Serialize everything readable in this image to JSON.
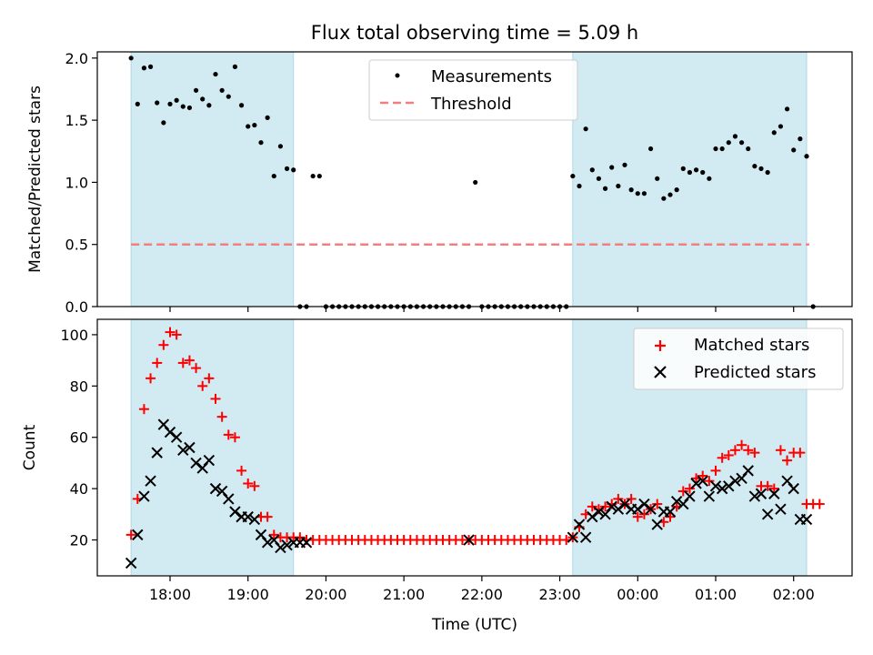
{
  "chart_data": [
    {
      "type": "scatter",
      "title": "Flux total observing time = 5.09 h",
      "ylabel": "Matched/Predicted stars",
      "xlabel": "",
      "ylim": [
        0,
        2.05
      ],
      "y_ticks": [
        0.0,
        0.5,
        1.0,
        1.5,
        2.0
      ],
      "y_tick_labels": [
        "0.0",
        "0.5",
        "1.0",
        "1.5",
        "2.0"
      ],
      "legend_placement": "top-center",
      "shaded_intervals": [
        [
          "17:30",
          "19:35"
        ],
        [
          "23:10",
          "02:10"
        ]
      ],
      "shade_color": "#add8e6",
      "threshold": {
        "name": "Threshold",
        "value": 0.5,
        "color": "#f08080",
        "x_range": [
          "17:30",
          "02:12"
        ]
      },
      "series": [
        {
          "name": "Measurements",
          "color": "#000000",
          "x": [
            "17:30",
            "17:35",
            "17:40",
            "17:45",
            "17:50",
            "17:55",
            "18:00",
            "18:05",
            "18:10",
            "18:15",
            "18:20",
            "18:25",
            "18:30",
            "18:35",
            "18:40",
            "18:45",
            "18:50",
            "18:55",
            "19:00",
            "19:05",
            "19:10",
            "19:15",
            "19:20",
            "19:25",
            "19:30",
            "19:35",
            "19:40",
            "19:45",
            "19:50",
            "19:55",
            "20:00",
            "20:05",
            "20:10",
            "20:15",
            "20:20",
            "20:25",
            "20:30",
            "20:35",
            "20:40",
            "20:45",
            "20:50",
            "20:55",
            "21:00",
            "21:05",
            "21:10",
            "21:15",
            "21:20",
            "21:25",
            "21:30",
            "21:35",
            "21:40",
            "21:45",
            "21:50",
            "21:55",
            "22:00",
            "22:05",
            "22:10",
            "22:15",
            "22:20",
            "22:25",
            "22:30",
            "22:35",
            "22:40",
            "22:45",
            "22:50",
            "22:55",
            "23:00",
            "23:05",
            "23:10",
            "23:15",
            "23:20",
            "23:25",
            "23:30",
            "23:35",
            "23:40",
            "23:45",
            "23:50",
            "23:55",
            "00:00",
            "00:05",
            "00:10",
            "00:15",
            "00:20",
            "00:25",
            "00:30",
            "00:35",
            "00:40",
            "00:45",
            "00:50",
            "00:55",
            "01:00",
            "01:05",
            "01:10",
            "01:15",
            "01:20",
            "01:25",
            "01:30",
            "01:35",
            "01:40",
            "01:45",
            "01:50",
            "01:55",
            "02:00",
            "02:05",
            "02:10",
            "02:15"
          ],
          "y": [
            2.0,
            1.63,
            1.92,
            1.93,
            1.64,
            1.48,
            1.63,
            1.66,
            1.61,
            1.6,
            1.74,
            1.67,
            1.62,
            1.87,
            1.74,
            1.69,
            1.93,
            1.62,
            1.45,
            1.46,
            1.32,
            1.52,
            1.05,
            1.29,
            1.11,
            1.1,
            0,
            0,
            1.05,
            1.05,
            0,
            0,
            0,
            0,
            0,
            0,
            0,
            0,
            0,
            0,
            0,
            0,
            0,
            0,
            0,
            0,
            0,
            0,
            0,
            0,
            0,
            0,
            0,
            1.0,
            0,
            0,
            0,
            0,
            0,
            0,
            0,
            0,
            0,
            0,
            0,
            0,
            0,
            0,
            1.05,
            0.97,
            1.43,
            1.1,
            1.03,
            0.95,
            1.12,
            0.97,
            1.14,
            0.94,
            0.91,
            0.91,
            1.27,
            1.03,
            0.87,
            0.9,
            0.94,
            1.11,
            1.08,
            1.1,
            1.08,
            1.03,
            1.27,
            1.27,
            1.32,
            1.37,
            1.32,
            1.27,
            1.13,
            1.11,
            1.08,
            1.4,
            1.45,
            1.59,
            1.26,
            1.35,
            1.21,
            0
          ]
        }
      ]
    },
    {
      "type": "scatter",
      "title": "",
      "ylabel": "Count",
      "xlabel": "Time (UTC)",
      "ylim": [
        6,
        106
      ],
      "y_ticks": [
        20,
        40,
        60,
        80,
        100
      ],
      "y_tick_labels": [
        "20",
        "40",
        "60",
        "80",
        "100"
      ],
      "x_ticks": [
        "18:00",
        "19:00",
        "20:00",
        "21:00",
        "22:00",
        "23:00",
        "00:00",
        "01:00",
        "02:00"
      ],
      "x_range": [
        "17:04",
        "02:45"
      ],
      "legend_placement": "top-right",
      "shaded_intervals": [
        [
          "17:30",
          "19:35"
        ],
        [
          "23:10",
          "02:10"
        ]
      ],
      "shade_color": "#add8e6",
      "series": [
        {
          "name": "Matched stars",
          "color": "#ff0000",
          "marker": "plus",
          "x": [
            "17:30",
            "17:35",
            "17:40",
            "17:45",
            "17:50",
            "17:55",
            "18:00",
            "18:05",
            "18:10",
            "18:15",
            "18:20",
            "18:25",
            "18:30",
            "18:35",
            "18:40",
            "18:45",
            "18:50",
            "18:55",
            "19:00",
            "19:05",
            "19:10",
            "19:15",
            "19:20",
            "19:25",
            "19:30",
            "19:35",
            "19:40",
            "19:45",
            "19:50",
            "19:55",
            "20:00",
            "20:05",
            "20:10",
            "20:15",
            "20:20",
            "20:25",
            "20:30",
            "20:35",
            "20:40",
            "20:45",
            "20:50",
            "20:55",
            "21:00",
            "21:05",
            "21:10",
            "21:15",
            "21:20",
            "21:25",
            "21:30",
            "21:35",
            "21:40",
            "21:45",
            "21:50",
            "21:55",
            "22:00",
            "22:05",
            "22:10",
            "22:15",
            "22:20",
            "22:25",
            "22:30",
            "22:35",
            "22:40",
            "22:45",
            "22:50",
            "22:55",
            "23:00",
            "23:05",
            "23:10",
            "23:15",
            "23:20",
            "23:25",
            "23:30",
            "23:35",
            "23:40",
            "23:45",
            "23:50",
            "23:55",
            "00:00",
            "00:05",
            "00:10",
            "00:15",
            "00:20",
            "00:25",
            "00:30",
            "00:35",
            "00:40",
            "00:45",
            "00:50",
            "00:55",
            "01:00",
            "01:05",
            "01:10",
            "01:15",
            "01:20",
            "01:25",
            "01:30",
            "01:35",
            "01:40",
            "01:45",
            "01:50",
            "01:55",
            "02:00",
            "02:05",
            "02:10",
            "02:15",
            "02:20"
          ],
          "y": [
            22,
            36,
            71,
            83,
            89,
            96,
            101,
            100,
            89,
            90,
            87,
            80,
            83,
            75,
            68,
            61,
            60,
            47,
            42,
            41,
            29,
            29,
            22,
            21,
            21,
            21,
            21,
            20,
            20,
            20,
            20,
            20,
            20,
            20,
            20,
            20,
            20,
            20,
            20,
            20,
            20,
            20,
            20,
            20,
            20,
            20,
            20,
            20,
            20,
            20,
            20,
            20,
            20,
            20,
            20,
            20,
            20,
            20,
            20,
            20,
            20,
            20,
            20,
            20,
            20,
            20,
            20,
            20,
            21,
            25,
            30,
            33,
            32,
            33,
            34,
            36,
            34,
            36,
            29,
            30,
            32,
            34,
            27,
            29,
            33,
            39,
            40,
            44,
            45,
            43,
            47,
            52,
            53,
            55,
            57,
            55,
            54,
            41,
            41,
            40,
            55,
            51,
            54,
            54,
            34,
            34,
            34
          ]
        },
        {
          "name": "Predicted stars",
          "color": "#000000",
          "marker": "x",
          "x": [
            "17:30",
            "17:35",
            "17:40",
            "17:45",
            "17:50",
            "17:55",
            "18:00",
            "18:05",
            "18:10",
            "18:15",
            "18:20",
            "18:25",
            "18:30",
            "18:35",
            "18:40",
            "18:45",
            "18:50",
            "18:55",
            "19:00",
            "19:05",
            "19:10",
            "19:15",
            "19:20",
            "19:25",
            "19:30",
            "19:35",
            "19:40",
            "19:45",
            "21:50",
            "23:10",
            "23:15",
            "23:20",
            "23:25",
            "23:30",
            "23:35",
            "23:40",
            "23:45",
            "23:50",
            "23:55",
            "00:00",
            "00:05",
            "00:10",
            "00:15",
            "00:20",
            "00:25",
            "00:30",
            "00:35",
            "00:40",
            "00:45",
            "00:50",
            "00:55",
            "01:00",
            "01:05",
            "01:10",
            "01:15",
            "01:20",
            "01:25",
            "01:30",
            "01:35",
            "01:40",
            "01:45",
            "01:50",
            "01:55",
            "02:00",
            "02:05",
            "02:10"
          ],
          "y": [
            11,
            22,
            37,
            43,
            54,
            65,
            62,
            60,
            55,
            56,
            50,
            48,
            51,
            40,
            39,
            36,
            31,
            29,
            29,
            28,
            22,
            19,
            20,
            17,
            18,
            19,
            19,
            19,
            20,
            21,
            26,
            21,
            29,
            31,
            30,
            33,
            32,
            34,
            32,
            32,
            34,
            32,
            26,
            31,
            31,
            35,
            34,
            37,
            42,
            43,
            37,
            41,
            40,
            41,
            43,
            44,
            47,
            37,
            38,
            30,
            38,
            32,
            43,
            40,
            28,
            28
          ]
        }
      ]
    }
  ]
}
